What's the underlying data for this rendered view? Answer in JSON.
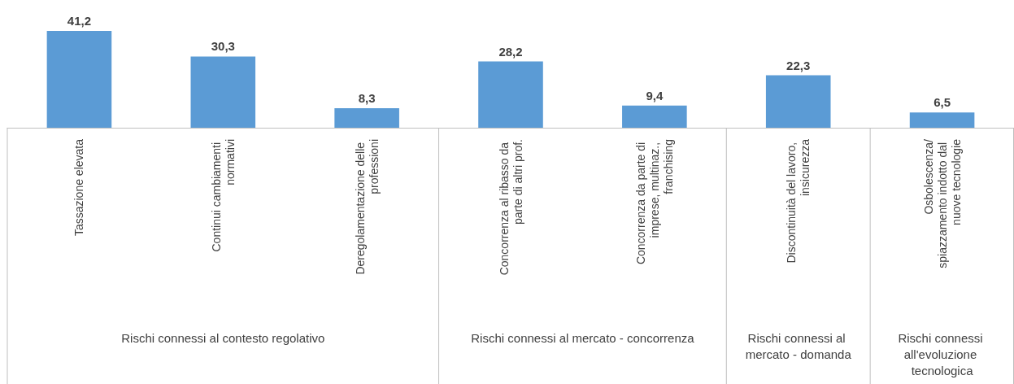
{
  "chart_data": {
    "type": "bar",
    "categories": [
      "Tassazione elevata",
      "Continui cambiamenti normativi",
      "Deregolamentazione delle professioni",
      "Concorrenza al ribasso da parte di altri prof.",
      "Concorrenza da parte di imprese, multinaz., franchising",
      "Discontinuità del lavoro, insicurezza",
      "Osbolescenza/spiazzamento indotto dal nuove tecnologie"
    ],
    "values": [
      41.2,
      30.3,
      8.3,
      28.2,
      9.4,
      22.3,
      6.5
    ],
    "value_labels": [
      "41,2",
      "30,3",
      "8,3",
      "28,2",
      "9,4",
      "22,3",
      "6,5"
    ],
    "color": "#5b9bd5",
    "tick_labels": "x",
    "annotations": [
      "Rischi connessi al contesto regolativo",
      "Rischi connessi al mercato - concorrenza",
      "Rischi connessi al mercato - domanda",
      "Rischi connessi all'evoluzione tecnologica"
    ]
  }
}
